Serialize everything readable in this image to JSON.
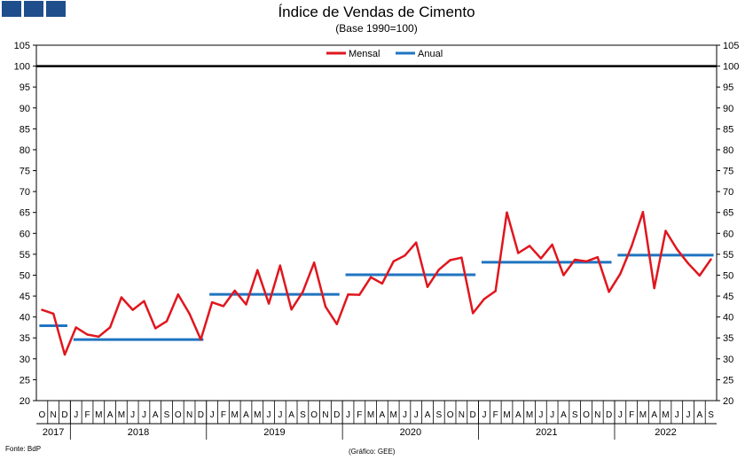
{
  "header": {
    "logo_color": "#1f4e8c",
    "title": "Índice de Vendas de Cimento",
    "subtitle": "(Base 1990=100)"
  },
  "footer": {
    "source": "Fonte: BdP",
    "credit": "(Gráfico: GEE)"
  },
  "chart_data": {
    "type": "line",
    "title": "Índice de Vendas de Cimento",
    "subtitle": "(Base 1990=100)",
    "xlabel": "",
    "ylabel": "",
    "ylim": [
      20,
      105
    ],
    "yticks": [
      20,
      25,
      30,
      35,
      40,
      45,
      50,
      55,
      60,
      65,
      70,
      75,
      80,
      85,
      90,
      95,
      100,
      105
    ],
    "y_axis_both_sides": true,
    "grid": false,
    "legend_position": "top-center",
    "reference_line": {
      "value": 100,
      "color": "#000000"
    },
    "month_labels": [
      "O",
      "N",
      "D",
      "J",
      "F",
      "M",
      "A",
      "M",
      "J",
      "J",
      "A",
      "S",
      "O",
      "N",
      "D",
      "J",
      "F",
      "M",
      "A",
      "M",
      "J",
      "J",
      "A",
      "S",
      "O",
      "N",
      "D",
      "J",
      "F",
      "M",
      "A",
      "M",
      "J",
      "J",
      "A",
      "S",
      "O",
      "N",
      "D",
      "J",
      "F",
      "M",
      "A",
      "M",
      "J",
      "J",
      "A",
      "S",
      "O",
      "N",
      "D",
      "J",
      "F",
      "M",
      "A",
      "M",
      "J",
      "J",
      "A",
      "S"
    ],
    "year_groups": [
      {
        "label": "2017",
        "months": 3
      },
      {
        "label": "2018",
        "months": 12
      },
      {
        "label": "2019",
        "months": 12
      },
      {
        "label": "2020",
        "months": 12
      },
      {
        "label": "2021",
        "months": 12
      },
      {
        "label": "2022",
        "months": 9
      }
    ],
    "series": [
      {
        "name": "Mensal",
        "color": "#e0161e",
        "values": [
          41.7,
          40.8,
          31.0,
          37.5,
          35.8,
          35.3,
          37.5,
          44.7,
          41.7,
          43.8,
          37.3,
          39.0,
          45.4,
          40.8,
          34.6,
          43.5,
          42.6,
          46.3,
          43.0,
          51.2,
          43.2,
          52.3,
          41.8,
          46.0,
          53.0,
          42.5,
          38.3,
          45.4,
          45.3,
          49.5,
          48.0,
          53.3,
          54.7,
          57.8,
          47.2,
          51.3,
          53.6,
          54.2,
          40.9,
          44.3,
          46.2,
          65.0,
          55.3,
          57.0,
          54.0,
          57.3,
          50.0,
          53.7,
          53.3,
          54.3,
          46.0,
          50.3,
          56.9,
          65.1,
          46.9,
          60.6,
          56.2,
          52.8,
          49.9,
          53.8
        ]
      },
      {
        "name": "Anual",
        "color": "#1f74c0",
        "segments": [
          {
            "year": "2017",
            "value": 37.9
          },
          {
            "year": "2018",
            "value": 34.6
          },
          {
            "year": "2019",
            "value": 45.4
          },
          {
            "year": "2020",
            "value": 50.1
          },
          {
            "year": "2021",
            "value": 53.1
          },
          {
            "year": "2022",
            "value": 54.8
          }
        ]
      }
    ]
  }
}
